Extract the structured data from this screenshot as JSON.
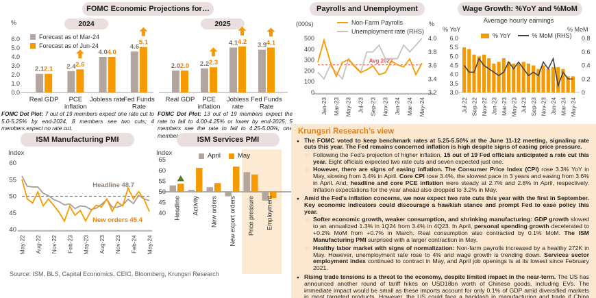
{
  "colors": {
    "orange": "#F59A00",
    "orange_label": "#F08300",
    "taupe": "#B3A69F",
    "gray_line": "#C9C1BD",
    "headline_gray": "#A89E98",
    "dark_line": "#3F3F3F",
    "red_dashed": "#E8514D",
    "pill_bg": "#EADFDF",
    "panel_bg": "#FCE8D0",
    "shade_bg": "#FCEAD3",
    "accent_heading": "#E87D0D",
    "green": "#4F7A28",
    "label_gray": "#7F756C"
  },
  "fomc": {
    "title": "FOMC Economic Projections for…",
    "footnote_2024": [
      {
        "t": "FOMC Dot Plot:",
        "b": true
      },
      {
        "t": " 7 out of 19 members expect one rate cut to 5.0-5.25% by end-2024, 8 members see two cuts; 4 members expect no rate cut.",
        "b": false
      }
    ],
    "footnote_2025": [
      {
        "t": "FOMC Dot Plot:",
        "b": true
      },
      {
        "t": " 13 out of 19 members expect the rate to fall to 4.00-4.25% or lower by end-2025; 5 members see the rate to fall to 4.25-5.00%; one member expects no rate cut.",
        "b": false
      }
    ]
  },
  "chart_data": [
    {
      "id": "fomc2024",
      "type": "bar",
      "title": "2024",
      "ylabel": "%",
      "ylim": [
        0,
        6
      ],
      "categories": [
        "Real GDP",
        "PCE inflation",
        "Jobless rate",
        "Fed Funds Rate"
      ],
      "category_lines": [
        [
          "Real GDP"
        ],
        [
          "PCE",
          "inflation"
        ],
        [
          "Jobless rate"
        ],
        [
          "Fed Funds",
          "Rate"
        ]
      ],
      "series": [
        {
          "name": "Forecast as of Mar-24",
          "values": [
            2.1,
            2.4,
            4.0,
            4.6
          ]
        },
        {
          "name": "Forecast as of Jun-24",
          "values": [
            2.1,
            2.6,
            4.0,
            5.1
          ]
        }
      ],
      "increase_arrows": [
        false,
        true,
        false,
        true
      ]
    },
    {
      "id": "fomc2025",
      "type": "bar",
      "title": "2025",
      "ylabel": "%",
      "ylim": [
        0,
        6
      ],
      "categories": [
        "Real GDP",
        "PCE inflation",
        "Jobless rate",
        "Fed Funds Rate"
      ],
      "category_lines": [
        [
          "Real GDP"
        ],
        [
          "PCE",
          "inflation"
        ],
        [
          "Jobless",
          "rate"
        ],
        [
          "Fed Funds",
          "Rate"
        ]
      ],
      "series": [
        {
          "name": "Forecast as of Mar-24",
          "values": [
            2.0,
            2.2,
            4.1,
            3.9
          ]
        },
        {
          "name": "Forecast as of Jun-24",
          "values": [
            2.0,
            2.3,
            4.2,
            4.1
          ]
        }
      ],
      "increase_arrows": [
        false,
        true,
        true,
        true
      ]
    },
    {
      "id": "payrolls",
      "type": "line",
      "title": "Payrolls and Unemployment",
      "ylabel_left": "(000s)",
      "ylabel_right": "%",
      "ylim_left": [
        0,
        500
      ],
      "ylim_right": [
        3.2,
        4.0
      ],
      "x": [
        "Dec-22",
        "Jan-23",
        "Feb-23",
        "Mar-23",
        "Apr-23",
        "May-23",
        "Jun-23",
        "Jul-23",
        "Aug-23",
        "Sep-23",
        "Oct-23",
        "Nov-23",
        "Dec-23",
        "Jan-24",
        "Feb-24",
        "Mar-24",
        "Apr-24",
        "May-24"
      ],
      "tick_indices": [
        1,
        3,
        5,
        7,
        9,
        11,
        13,
        15,
        17
      ],
      "series": [
        {
          "name": "Non-Farm Payrolls",
          "axis": "left",
          "values": [
            280,
            482,
            287,
            150,
            278,
            303,
            240,
            184,
            210,
            246,
            165,
            182,
            290,
            256,
            236,
            310,
            165,
            272
          ]
        },
        {
          "name": "Unemployment rate (RHS)",
          "axis": "right",
          "values": [
            3.5,
            3.4,
            3.6,
            3.5,
            3.4,
            3.7,
            3.6,
            3.5,
            3.8,
            3.8,
            3.9,
            3.7,
            3.7,
            3.7,
            3.9,
            3.8,
            3.9,
            4.0
          ]
        }
      ],
      "avg_line": {
        "label": "Avg 2023",
        "value": 255
      }
    },
    {
      "id": "wage",
      "type": "bar+line",
      "title": "Wage Growth: %YoY and %MoM",
      "subtitle": "Average hourly earnings",
      "ylabel_left": "% YoY",
      "ylabel_right": "% MoM",
      "ylim_left": [
        3.0,
        6.0
      ],
      "ylim_right": [
        0,
        0.8
      ],
      "x": [
        "Jul-22",
        "Aug-22",
        "Sep-22",
        "Oct-22",
        "Nov-22",
        "Dec-22",
        "Jan-23",
        "Feb-23",
        "Mar-23",
        "Apr-23",
        "May-23",
        "Jun-23",
        "Jul-23",
        "Aug-23",
        "Sep-23",
        "Oct-23",
        "Nov-23",
        "Dec-23",
        "Jan-24",
        "Feb-24",
        "Mar-24",
        "Apr-24",
        "May-24"
      ],
      "tick_indices": [
        0,
        2,
        4,
        6,
        8,
        10,
        12,
        14,
        16,
        18,
        20,
        22
      ],
      "series": [
        {
          "name": "% YoY",
          "type": "bar",
          "axis": "left",
          "values": [
            5.5,
            5.4,
            5.1,
            5.0,
            5.1,
            4.9,
            4.6,
            4.7,
            4.9,
            4.7,
            4.6,
            4.6,
            4.7,
            4.6,
            4.5,
            4.3,
            4.5,
            4.3,
            4.4,
            4.4,
            4.3,
            3.9,
            3.9
          ]
        },
        {
          "name": "% MoM (RHS)",
          "type": "line",
          "axis": "right",
          "values": [
            0.4,
            0.3,
            0.3,
            0.5,
            0.4,
            0.35,
            0.3,
            0.25,
            0.3,
            0.45,
            0.35,
            0.45,
            0.35,
            0.25,
            0.3,
            0.25,
            0.45,
            0.35,
            0.5,
            0.1,
            0.3,
            0.2,
            0.2
          ]
        }
      ]
    },
    {
      "id": "ism_mfg",
      "type": "line",
      "title": "ISM Manufacturing PMI",
      "ylabel": "Index",
      "ylim": [
        40,
        60
      ],
      "ref_line": 50,
      "x": [
        "May-22",
        "Jun-22",
        "Jul-22",
        "Aug-22",
        "Sep-22",
        "Oct-22",
        "Nov-22",
        "Dec-22",
        "Jan-23",
        "Feb-23",
        "Mar-23",
        "Apr-23",
        "May-23",
        "Jun-23",
        "Jul-23",
        "Aug-23",
        "Sep-23",
        "Oct-23",
        "Nov-23",
        "Dec-23",
        "Jan-24",
        "Feb-24",
        "Mar-24",
        "Apr-24",
        "May-24"
      ],
      "tick_indices": [
        0,
        3,
        6,
        9,
        12,
        15,
        18,
        21,
        24
      ],
      "series": [
        {
          "name": "Headline",
          "values": [
            56.1,
            53.0,
            52.8,
            52.8,
            50.9,
            50.2,
            49.0,
            48.4,
            47.4,
            47.7,
            46.3,
            47.1,
            46.9,
            46.0,
            46.4,
            47.6,
            49.0,
            46.7,
            46.7,
            47.4,
            49.1,
            47.8,
            50.3,
            49.2,
            48.7
          ]
        },
        {
          "name": "New orders",
          "values": [
            55.1,
            49.2,
            48.0,
            51.3,
            47.1,
            49.2,
            47.2,
            45.2,
            42.5,
            47.0,
            44.3,
            45.7,
            42.6,
            45.6,
            47.3,
            46.8,
            49.2,
            45.5,
            48.3,
            47.1,
            52.5,
            49.2,
            51.4,
            49.1,
            45.4
          ]
        }
      ],
      "end_labels": [
        {
          "text": "Headline",
          "value": 48.7
        },
        {
          "text": "New orders",
          "value": 45.4
        }
      ]
    },
    {
      "id": "ism_svc",
      "type": "bar",
      "title": "ISM Services PMI",
      "ylabel": "Index",
      "ylim": [
        40,
        65
      ],
      "baseline": 50,
      "categories": [
        "Headline",
        "Activity",
        "New orders",
        "New export orders",
        "Price pressure",
        "Employment"
      ],
      "series": [
        {
          "name": "April",
          "values": [
            53.0,
            50.9,
            52.2,
            47.9,
            59.2,
            45.9
          ]
        },
        {
          "name": "May",
          "values": [
            53.8,
            61.2,
            54.1,
            61.8,
            58.1,
            47.1
          ]
        }
      ],
      "highlighted_categories": [
        "Price pressure",
        "Employment"
      ],
      "up_marker_category": "Headline"
    }
  ],
  "view": {
    "title": "Krungsri Research’s view",
    "bullets": [
      {
        "level": 1,
        "segments": [
          {
            "t": "The FOMC voted to keep benchmark rates at 5.25-5.50% at the June 11-12 meeting, signaling rate cuts this year. The Fed remains concerned inflation is high despite signs of easing price pressure.",
            "b": true
          }
        ]
      },
      {
        "level": 2,
        "segments": [
          {
            "t": "Following the Fed’s projection of higher inflation, ",
            "b": false
          },
          {
            "t": "15 out of 19 Fed officials anticipated a rate cut this year.",
            "b": true
          },
          {
            "t": " Eight officials expected two rate cuts and seven expected just one.",
            "b": false
          }
        ]
      },
      {
        "level": 2,
        "segments": [
          {
            "t": "However, there are signs of easing inflation. The Consumer Price Index (CPI)",
            "b": true
          },
          {
            "t": " rose 3.3% YoY in May, slowing from 3.4% in April. ",
            "b": false
          },
          {
            "t": "Core CPI",
            "b": true
          },
          {
            "t": " rose 3.4%, the slowest pace in 3 years and easing from 3.6% in April. And, ",
            "b": false
          },
          {
            "t": "headline and core PCE inflation",
            "b": true
          },
          {
            "t": " were steady at 2.7% and 2.8% in April, respectively. Inflation expectations for the year ahead also dropped to 3.2% in May.",
            "b": false
          }
        ]
      },
      {
        "level": 1,
        "segments": [
          {
            "t": "Amid the Fed’s inflation concerns, we now expect two rate cuts this year with the first in September. Key economic indicators could discourage a hawkish stance and prompt Fed to ease policy this year.",
            "b": true
          }
        ]
      },
      {
        "level": 2,
        "segments": [
          {
            "t": "Softer economic growth, weaker consumption, and shrinking manufacturing: GDP growth",
            "b": true
          },
          {
            "t": " slowed to an annualized 1.3% in 1Q24 from 3.4% in 4Q23. In April, ",
            "b": false
          },
          {
            "t": "personal spending growth",
            "b": true
          },
          {
            "t": " decelerated to +0.2% MoM from +0.7% in March. Real consumption also contracted by 0.1% MoM. ",
            "b": false
          },
          {
            "t": "The ISM Manufacturing PMI",
            "b": true
          },
          {
            "t": " surprised with a larger contraction in May.",
            "b": false
          }
        ]
      },
      {
        "level": 2,
        "segments": [
          {
            "t": "Healthy labor market with signs of normalization:",
            "b": true
          },
          {
            "t": " Non-farm payrolls increased by a healthy 272K in May. However, unemployment rate rose to 4% and wage growth is trending down. ",
            "b": false
          },
          {
            "t": "Services sector employment index",
            "b": true
          },
          {
            "t": " continued to contract in May, and April job openings is at its lowest since February 2021.",
            "b": false
          }
        ]
      },
      {
        "level": 1,
        "segments": [
          {
            "t": "Rising trade tensions is a threat to the economy, despite limited impact in the near-term.",
            "b": true
          },
          {
            "t": " The US has announced another round of tariff hikes on USD18bn worth of Chinese goods, including EVs. The immediate impact would be small as these imports account for only 0.1% of GDP amid diversified markets in most targeted products. However, the US could face a backlash in manufacturing and trade if China retaliates by targeting US products for which China is a major export destination.",
            "b": false
          }
        ]
      }
    ]
  },
  "source": "Source: ISM, BLS, Capital Economics, CEIC, Bloomberg, Krungsri Research"
}
